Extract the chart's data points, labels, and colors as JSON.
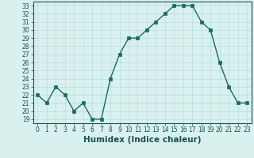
{
  "x": [
    0,
    1,
    2,
    3,
    4,
    5,
    6,
    7,
    8,
    9,
    10,
    11,
    12,
    13,
    14,
    15,
    16,
    17,
    18,
    19,
    20,
    21,
    22,
    23
  ],
  "y": [
    22,
    21,
    23,
    22,
    20,
    21,
    19,
    19,
    24,
    27,
    29,
    29,
    30,
    31,
    32,
    33,
    33,
    33,
    31,
    30,
    26,
    23,
    21,
    21
  ],
  "line_color": "#1a6b5e",
  "marker_color": "#1a6b5e",
  "bg_color": "#d8f0ee",
  "grid_color": "#b8dcd8",
  "xlabel": "Humidex (Indice chaleur)",
  "xlim": [
    -0.5,
    23.5
  ],
  "ylim": [
    18.5,
    33.5
  ],
  "yticks": [
    19,
    20,
    21,
    22,
    23,
    24,
    25,
    26,
    27,
    28,
    29,
    30,
    31,
    32,
    33
  ],
  "xticks": [
    0,
    1,
    2,
    3,
    4,
    5,
    6,
    7,
    8,
    9,
    10,
    11,
    12,
    13,
    14,
    15,
    16,
    17,
    18,
    19,
    20,
    21,
    22,
    23
  ],
  "tick_fontsize": 5.5,
  "xlabel_fontsize": 7.5,
  "linewidth": 1.0,
  "markersize": 2.5
}
